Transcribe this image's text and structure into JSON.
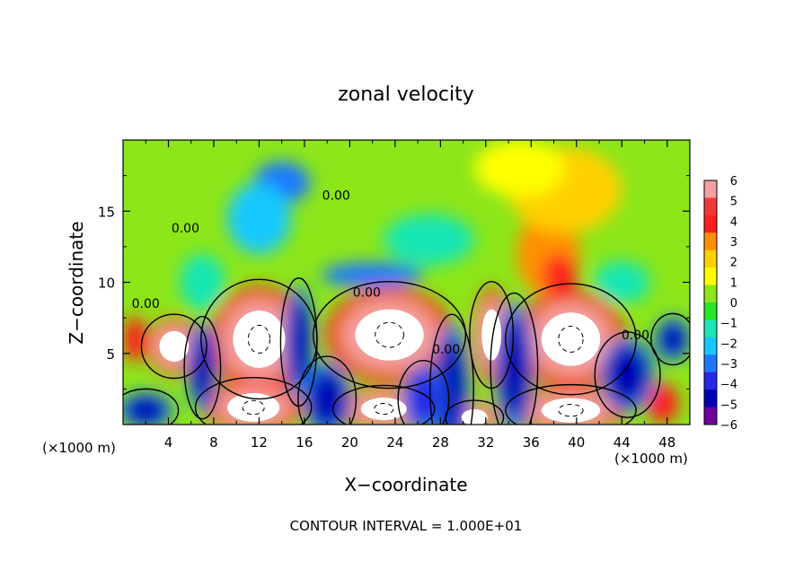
{
  "chart_data": {
    "type": "heatmap",
    "title": "zonal velocity",
    "xlabel": "X−coordinate",
    "ylabel": "Z−coordinate",
    "x_unit_left": "(×1000 m)",
    "x_unit_right": "(×1000 m)",
    "footnote": "CONTOUR INTERVAL = 1.000E+01",
    "xlim": [
      0,
      50
    ],
    "ylim": [
      0,
      20
    ],
    "x_ticks": [
      "4",
      "8",
      "12",
      "16",
      "20",
      "24",
      "28",
      "32",
      "36",
      "40",
      "44",
      "48"
    ],
    "x_tick_values": [
      4,
      8,
      12,
      16,
      20,
      24,
      28,
      32,
      36,
      40,
      44,
      48
    ],
    "y_ticks": [
      "5",
      "10",
      "15"
    ],
    "y_tick_values": [
      5,
      10,
      15
    ],
    "colorbar": {
      "labels": [
        "6",
        "5",
        "4",
        "3",
        "2",
        "1",
        "0",
        "−1",
        "−2",
        "−3",
        "−4",
        "−5",
        "−6"
      ],
      "values": [
        6,
        5,
        4,
        3,
        2,
        1,
        0,
        -1,
        -2,
        -3,
        -4,
        -5,
        -6
      ],
      "colors": [
        "#f4a0a0",
        "#f03838",
        "#ff1e1e",
        "#ff9000",
        "#ffd000",
        "#ffff00",
        "#8ce619",
        "#28e628",
        "#19e6b4",
        "#14c8ff",
        "#1e78ff",
        "#2828e6",
        "#0000b4",
        "#6e00a0"
      ]
    },
    "contour_labels": [
      {
        "text": "0.00",
        "x": 2.0,
        "z": 8.2
      },
      {
        "text": "0.00",
        "x": 5.5,
        "z": 13.5
      },
      {
        "text": "0.00",
        "x": 18.8,
        "z": 15.8
      },
      {
        "text": "0.00",
        "x": 21.5,
        "z": 9.0
      },
      {
        "text": "0.00",
        "x": 28.5,
        "z": 5.0
      },
      {
        "text": "0.00",
        "x": 45.2,
        "z": 6.0
      }
    ],
    "features": [
      {
        "value": 6,
        "x": 4.5,
        "z": 5.5,
        "rx": 1.8,
        "rz": 1.5
      },
      {
        "value": 6,
        "x": 12.0,
        "z": 6.0,
        "rx": 3.2,
        "rz": 2.8
      },
      {
        "value": 6,
        "x": 23.5,
        "z": 6.3,
        "rx": 4.2,
        "rz": 2.5
      },
      {
        "value": 6,
        "x": 32.5,
        "z": 6.3,
        "rx": 1.2,
        "rz": 2.5
      },
      {
        "value": 6,
        "x": 39.5,
        "z": 6.0,
        "rx": 3.6,
        "rz": 2.6
      },
      {
        "value": 6,
        "x": 11.5,
        "z": 1.2,
        "rx": 3.2,
        "rz": 1.4
      },
      {
        "value": 6,
        "x": 23.0,
        "z": 1.1,
        "rx": 2.8,
        "rz": 1.1
      },
      {
        "value": 6,
        "x": 31.0,
        "z": 0.5,
        "rx": 1.6,
        "rz": 0.8
      },
      {
        "value": 6,
        "x": 39.5,
        "z": 1.0,
        "rx": 3.6,
        "rz": 1.2
      },
      {
        "value": 4,
        "x": 47.6,
        "z": 1.5,
        "rx": 1.4,
        "rz": 1.4
      },
      {
        "value": 4,
        "x": 1.0,
        "z": 6.0,
        "rx": 1.0,
        "rz": 1.6
      },
      {
        "value": -6,
        "x": 2.0,
        "z": 1.0,
        "rx": 1.8,
        "rz": 1.0
      },
      {
        "value": -6,
        "x": 7.0,
        "z": 4.0,
        "rx": 1.0,
        "rz": 2.4
      },
      {
        "value": -6,
        "x": 15.5,
        "z": 5.8,
        "rx": 1.0,
        "rz": 3.0
      },
      {
        "value": -6,
        "x": 18.0,
        "z": 1.8,
        "rx": 1.6,
        "rz": 2.0
      },
      {
        "value": -6,
        "x": 29.0,
        "z": 2.5,
        "rx": 1.2,
        "rz": 3.5
      },
      {
        "value": -6,
        "x": 34.5,
        "z": 4.0,
        "rx": 1.3,
        "rz": 3.5
      },
      {
        "value": -6,
        "x": 44.5,
        "z": 3.5,
        "rx": 1.8,
        "rz": 2.0
      },
      {
        "value": -6,
        "x": 48.5,
        "z": 6.0,
        "rx": 1.2,
        "rz": 1.2
      },
      {
        "value": -5,
        "x": 26.5,
        "z": 1.8,
        "rx": 1.4,
        "rz": 1.8
      },
      {
        "value": -4,
        "x": 22.0,
        "z": 10.5,
        "rx": 4.5,
        "rz": 0.9
      },
      {
        "value": -4,
        "x": 14.0,
        "z": 17.0,
        "rx": 2.5,
        "rz": 1.5
      },
      {
        "value": -3,
        "x": 12.0,
        "z": 14.5,
        "rx": 2.8,
        "rz": 2.5
      },
      {
        "value": -2,
        "x": 27.0,
        "z": 13.0,
        "rx": 4.0,
        "rz": 1.8
      },
      {
        "value": -2,
        "x": 7.0,
        "z": 10.0,
        "rx": 2.0,
        "rz": 2.0
      },
      {
        "value": -2,
        "x": 44.0,
        "z": 10.0,
        "rx": 2.5,
        "rz": 1.5
      },
      {
        "value": 3,
        "x": 37.5,
        "z": 12.0,
        "rx": 2.8,
        "rz": 3.0
      },
      {
        "value": 4,
        "x": 38.5,
        "z": 10.5,
        "rx": 1.5,
        "rz": 1.5
      },
      {
        "value": 2,
        "x": 39.0,
        "z": 16.5,
        "rx": 5.0,
        "rz": 3.0
      },
      {
        "value": 1,
        "x": 35.0,
        "z": 18.0,
        "rx": 4.0,
        "rz": 2.0
      }
    ]
  }
}
